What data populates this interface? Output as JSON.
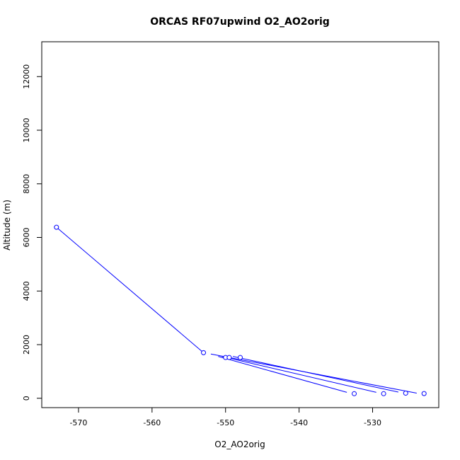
{
  "chart_data": {
    "type": "line",
    "title": "ORCAS RF07upwind O2_AO2orig",
    "xlabel": "O2_AO2orig",
    "ylabel": "Altitude (m)",
    "xlim": [
      -575,
      -521
    ],
    "ylim": [
      -350,
      13300
    ],
    "x_ticks": [
      -570,
      -560,
      -550,
      -540,
      -530
    ],
    "y_ticks": [
      0,
      2000,
      4000,
      6000,
      8000,
      10000,
      12000
    ],
    "x_tick_labels": [
      "-570",
      "-560",
      "-550",
      "-540",
      "-530"
    ],
    "y_tick_labels": [
      "0",
      "2000",
      "4000",
      "6000",
      "8000",
      "10000",
      "12000"
    ],
    "grid": false,
    "colors": {
      "series": "#0000ff",
      "axis": "#000000"
    },
    "points": [
      {
        "x": -573.0,
        "y": 6380
      },
      {
        "x": -553.0,
        "y": 1700
      },
      {
        "x": -550.0,
        "y": 1520
      },
      {
        "x": -549.5,
        "y": 1520
      },
      {
        "x": -548.0,
        "y": 1520
      },
      {
        "x": -532.5,
        "y": 170
      },
      {
        "x": -528.5,
        "y": 170
      },
      {
        "x": -525.5,
        "y": 190
      },
      {
        "x": -523.0,
        "y": 175
      }
    ],
    "segments": [
      [
        [
          -573.0,
          6380
        ],
        [
          -553.0,
          1700
        ]
      ],
      [
        [
          -552.0,
          1650
        ],
        [
          -524.0,
          190
        ]
      ],
      [
        [
          -551.0,
          1560
        ],
        [
          -533.5,
          220
        ]
      ],
      [
        [
          -550.5,
          1560
        ],
        [
          -529.5,
          220
        ]
      ],
      [
        [
          -549.0,
          1560
        ],
        [
          -526.5,
          230
        ]
      ]
    ]
  }
}
